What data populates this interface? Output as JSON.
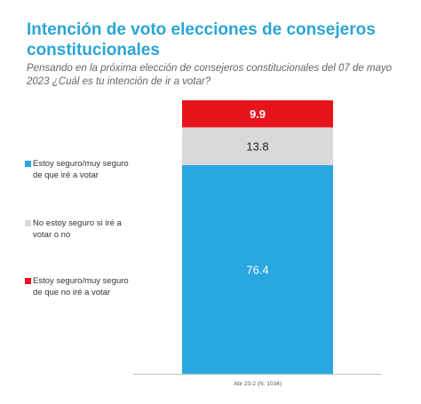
{
  "title": "Intención de voto elecciones de consejeros constitucionales",
  "subtitle": "Pensando en la próxima elección de consejeros constitucionales del 07 de mayo 2023 ¿Cuál es tu intención de ir a votar?",
  "chart_data": {
    "type": "bar",
    "stacked": true,
    "categories": [
      "Abr 23-2 (N: 1034)"
    ],
    "series": [
      {
        "name": "Estoy seguro/muy seguro de que iré a votar",
        "values": [
          76.4
        ],
        "color": "#29a7e1",
        "label_color": "#ffffff"
      },
      {
        "name": "No estoy seguro si iré a votar o no",
        "values": [
          13.8
        ],
        "color": "#d9d9d9",
        "label_color": "#222222"
      },
      {
        "name": "Estoy seguro/muy seguro de que no iré a votar",
        "values": [
          9.9
        ],
        "color": "#e8141c",
        "label_color": "#ffffff"
      }
    ],
    "data_labels": [
      "76.4",
      "13.8",
      "9.9"
    ],
    "legend_position": "left",
    "grid": false
  }
}
